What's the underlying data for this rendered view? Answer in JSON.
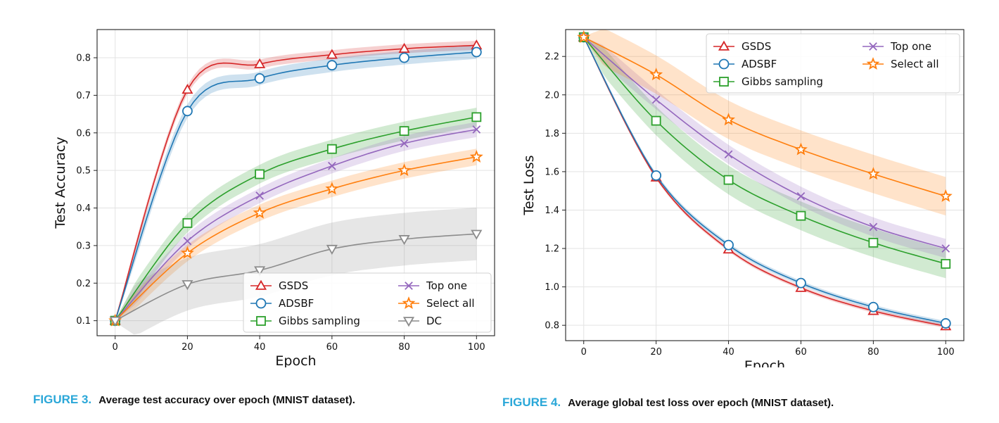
{
  "colors": {
    "GSDS": "#d62728",
    "ADSBF": "#1f77b4",
    "Gibbs sampling": "#2ca02c",
    "Top one": "#9467bd",
    "Select all": "#ff7f0e",
    "DC": "#8c8c8c"
  },
  "figures": [
    {
      "caption_label": "FIGURE 3.",
      "caption_text": "Average test accuracy over epoch (MNIST dataset)."
    },
    {
      "caption_label": "FIGURE 4.",
      "caption_text": "Average global test loss over epoch (MNIST dataset)."
    }
  ],
  "chart_data": [
    {
      "type": "line",
      "title": "",
      "xlabel": "Epoch",
      "ylabel": "Test Accuracy",
      "xlim": [
        -5,
        105
      ],
      "ylim": [
        0.06,
        0.875
      ],
      "xticks": [
        0,
        20,
        40,
        60,
        80,
        100
      ],
      "yticks": [
        0.1,
        0.2,
        0.3,
        0.4,
        0.5,
        0.6,
        0.7,
        0.8
      ],
      "grid": true,
      "legend_placement": "bottom-right",
      "legend_columns": 2,
      "x": [
        0,
        20,
        40,
        60,
        80,
        100
      ],
      "series": [
        {
          "name": "GSDS",
          "marker": "triangle-up",
          "values": [
            0.1,
            0.715,
            0.783,
            0.808,
            0.824,
            0.833
          ],
          "band": 0.012
        },
        {
          "name": "ADSBF",
          "marker": "circle",
          "values": [
            0.1,
            0.658,
            0.745,
            0.78,
            0.8,
            0.815
          ],
          "band": 0.018
        },
        {
          "name": "Gibbs sampling",
          "marker": "square",
          "values": [
            0.1,
            0.36,
            0.49,
            0.557,
            0.605,
            0.642
          ],
          "band": 0.025
        },
        {
          "name": "Top one",
          "marker": "x",
          "values": [
            0.1,
            0.312,
            0.433,
            0.512,
            0.572,
            0.609
          ],
          "band": 0.02
        },
        {
          "name": "Select all",
          "marker": "star",
          "values": [
            0.1,
            0.28,
            0.387,
            0.451,
            0.5,
            0.536
          ],
          "band": 0.022
        },
        {
          "name": "DC",
          "marker": "triangle-down",
          "values": [
            0.1,
            0.197,
            0.234,
            0.291,
            0.317,
            0.331
          ],
          "band": 0.07
        }
      ]
    },
    {
      "type": "line",
      "title": "",
      "xlabel": "Epoch",
      "ylabel": "Test Loss",
      "xlim": [
        -5,
        105
      ],
      "ylim": [
        0.72,
        2.34
      ],
      "xticks": [
        0,
        20,
        40,
        60,
        80,
        100
      ],
      "yticks": [
        0.8,
        1.0,
        1.2,
        1.4,
        1.6,
        1.8,
        2.0,
        2.2
      ],
      "grid": true,
      "legend_placement": "top-right",
      "legend_columns": 2,
      "x": [
        0,
        20,
        40,
        60,
        80,
        100
      ],
      "series": [
        {
          "name": "GSDS",
          "marker": "triangle-up",
          "values": [
            2.3,
            1.57,
            1.195,
            0.995,
            0.875,
            0.795
          ],
          "band": 0.01
        },
        {
          "name": "ADSBF",
          "marker": "circle",
          "values": [
            2.3,
            1.58,
            1.218,
            1.02,
            0.895,
            0.81
          ],
          "band": 0.012
        },
        {
          "name": "Gibbs sampling",
          "marker": "square",
          "values": [
            2.3,
            1.865,
            1.557,
            1.37,
            1.23,
            1.12
          ],
          "band": 0.075
        },
        {
          "name": "Top one",
          "marker": "x",
          "values": [
            2.3,
            1.975,
            1.69,
            1.472,
            1.312,
            1.2
          ],
          "band": 0.05
        },
        {
          "name": "Select all",
          "marker": "star",
          "values": [
            2.3,
            2.105,
            1.87,
            1.715,
            1.588,
            1.472
          ],
          "band": 0.1
        }
      ]
    }
  ]
}
